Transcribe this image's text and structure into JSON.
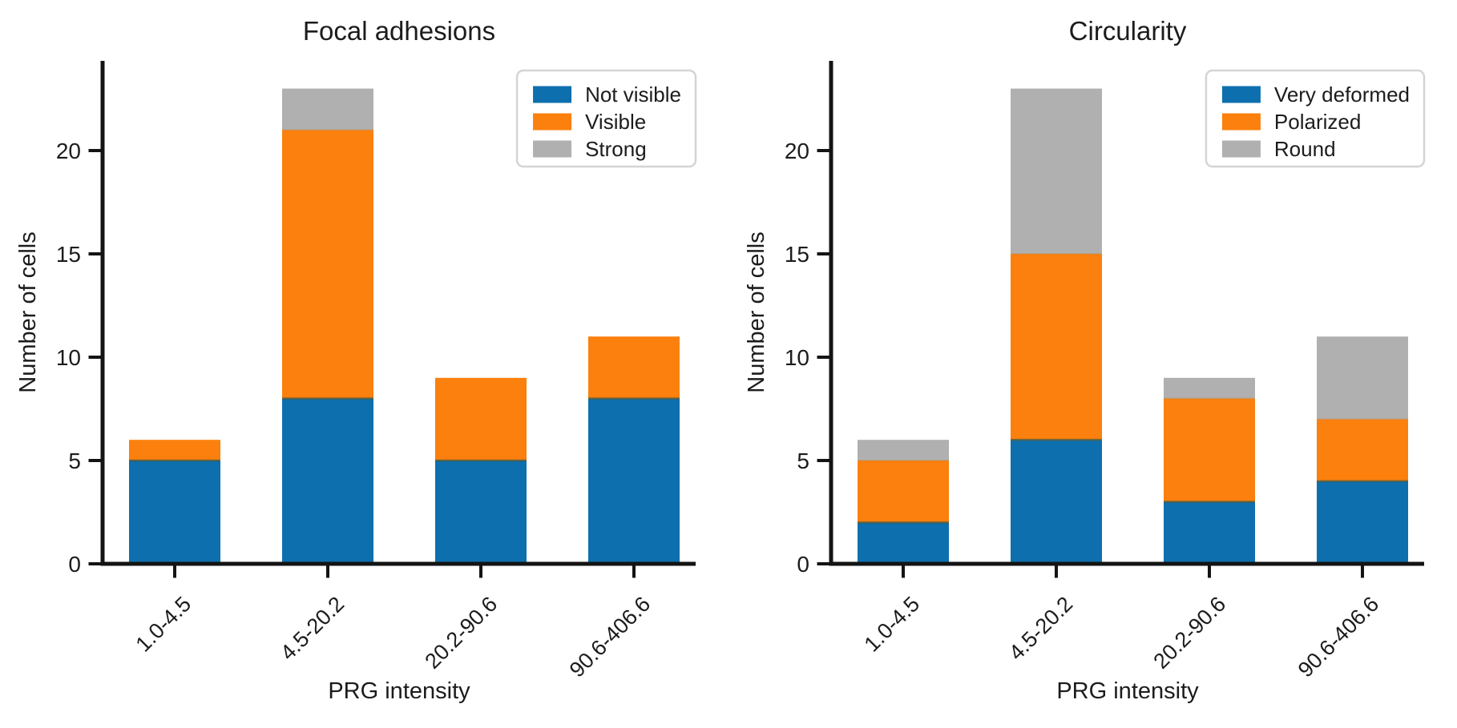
{
  "figure": {
    "background": "#ffffff"
  },
  "colors": {
    "blue": "#0d6fad",
    "orange": "#fb800e",
    "gray": "#b0b0b0",
    "axis": "#141414",
    "text": "#1c1c1c",
    "legend_border": "#d4d4d4",
    "legend_background": "#ffffff"
  },
  "chart_data": [
    {
      "type": "bar",
      "stacked": true,
      "title": "Focal adhesions",
      "xlabel": "PRG intensity",
      "ylabel": "Number of cells",
      "categories": [
        "1.0-4.5",
        "4.5-20.2",
        "20.2-90.6",
        "90.6-406.6"
      ],
      "yticks": [
        0,
        5,
        10,
        15,
        20
      ],
      "ylim": [
        0,
        24.3
      ],
      "grid": false,
      "legend_position": "upper right",
      "series": [
        {
          "name": "Not visible",
          "color_key": "blue",
          "values": [
            5,
            8,
            5,
            8
          ]
        },
        {
          "name": "Visible",
          "color_key": "orange",
          "values": [
            1,
            13,
            4,
            3
          ]
        },
        {
          "name": "Strong",
          "color_key": "gray",
          "values": [
            0,
            2,
            0,
            0
          ]
        }
      ],
      "totals": [
        6,
        23,
        9,
        11
      ]
    },
    {
      "type": "bar",
      "stacked": true,
      "title": "Circularity",
      "xlabel": "PRG intensity",
      "ylabel": "Number of cells",
      "categories": [
        "1.0-4.5",
        "4.5-20.2",
        "20.2-90.6",
        "90.6-406.6"
      ],
      "yticks": [
        0,
        5,
        10,
        15,
        20
      ],
      "ylim": [
        0,
        24.3
      ],
      "grid": false,
      "legend_position": "upper right",
      "series": [
        {
          "name": "Very deformed",
          "color_key": "blue",
          "values": [
            2,
            6,
            3,
            4
          ]
        },
        {
          "name": "Polarized",
          "color_key": "orange",
          "values": [
            3,
            9,
            5,
            3
          ]
        },
        {
          "name": "Round",
          "color_key": "gray",
          "values": [
            1,
            8,
            1,
            4
          ]
        }
      ],
      "totals": [
        6,
        23,
        9,
        11
      ]
    }
  ]
}
